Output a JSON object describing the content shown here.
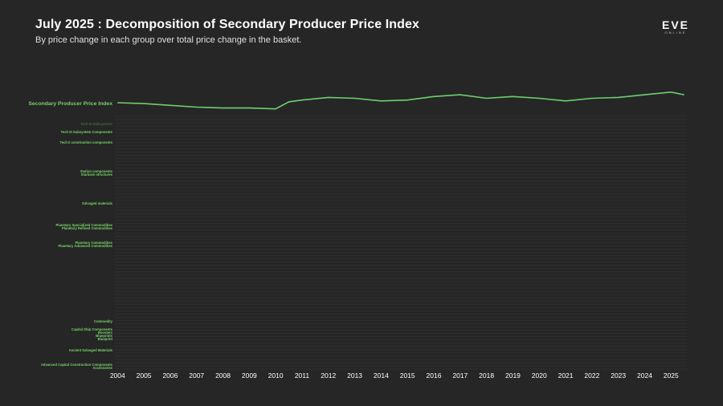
{
  "header": {
    "title": "July 2025 : Decomposition of Secondary Producer Price Index",
    "subtitle": "By price change in each group over total price change in the basket."
  },
  "logo": {
    "text": "EVE",
    "sub": "ONLINE"
  },
  "colors": {
    "background": "#262626",
    "index_line": "#6fcf6f",
    "increase": "#d9363e",
    "decrease": "#3a86d8",
    "label_bright": "#79d36a",
    "label_dim": "#3f6a3a"
  },
  "chart_data": {
    "type": "heatmap",
    "title": "July 2025 : Decomposition of Secondary Producer Price Index",
    "subtitle": "By price change in each group over total price change in the basket.",
    "x_ticks": [
      "2004",
      "2005",
      "2006",
      "2007",
      "2008",
      "2009",
      "2010",
      "2011",
      "2012",
      "2013",
      "2014",
      "2015",
      "2016",
      "2017",
      "2018",
      "2019",
      "2020",
      "2021",
      "2022",
      "2023",
      "2024",
      "2025"
    ],
    "xlim": [
      2003.9,
      2025.6
    ],
    "index_label": "Secondary Producer Price Index",
    "index_series": {
      "name": "Secondary Producer Price Index",
      "x": [
        2004,
        2005,
        2006,
        2007,
        2008,
        2009,
        2010,
        2010.5,
        2011,
        2012,
        2013,
        2014,
        2015,
        2016,
        2017,
        2018,
        2019,
        2020,
        2021,
        2022,
        2023,
        2024,
        2025,
        2025.5
      ],
      "y": [
        1.0,
        0.99,
        0.97,
        0.95,
        0.94,
        0.94,
        0.93,
        1.01,
        1.03,
        1.06,
        1.05,
        1.02,
        1.03,
        1.07,
        1.09,
        1.05,
        1.07,
        1.05,
        1.02,
        1.05,
        1.06,
        1.09,
        1.12,
        1.09
      ]
    },
    "rows": [
      {
        "label": "Tech III Subsystems",
        "bright": false
      },
      {
        "label": "Tech III Subsystem Components",
        "bright": true
      },
      {
        "label": "Tech II construction components",
        "bright": true
      },
      {
        "label": "Station components",
        "bright": true
      },
      {
        "label": "Starbase structures",
        "bright": true
      },
      {
        "label": "Salvaged materials",
        "bright": true
      },
      {
        "label": "Planetary Specialized Commodities",
        "bright": true
      },
      {
        "label": "Planetary Refined Commodities",
        "bright": true
      },
      {
        "label": "Planetary Commodities",
        "bright": true
      },
      {
        "label": "Planetary Advanced Commodities",
        "bright": true
      },
      {
        "label": "Commodity",
        "bright": true
      },
      {
        "label": "Capital Ship Components",
        "bright": true
      },
      {
        "label": "Boosters",
        "bright": true
      },
      {
        "label": "Blueprints",
        "bright": true
      },
      {
        "label": "Blueprint",
        "bright": true
      },
      {
        "label": "Ancient Salvaged Materials",
        "bright": true
      },
      {
        "label": "Advanced Capital Construction Components",
        "bright": true
      },
      {
        "label": "Accessories",
        "bright": true
      }
    ],
    "legend": "none",
    "grid": true
  }
}
